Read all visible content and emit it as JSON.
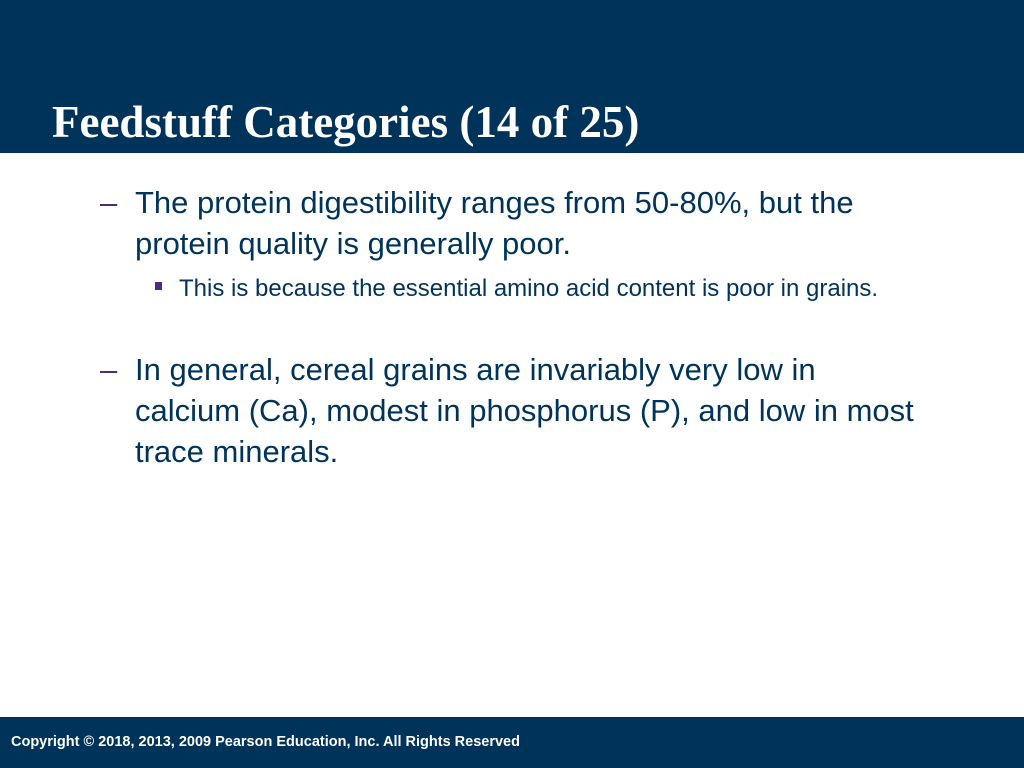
{
  "slide": {
    "title": "Feedstuff Categories (14 of 25)",
    "bullets": [
      {
        "marker": "–",
        "text": "The protein digestibility ranges from 50-80%, but the protein quality is generally poor.",
        "sub": [
          {
            "text": "This is because the essential amino acid content is poor in grains."
          }
        ]
      },
      {
        "marker": "–",
        "text": "In general, cereal grains are invariably very low in calcium (Ca), modest in phosphorus (P), and low in most trace minerals."
      }
    ]
  },
  "footer": {
    "copyright": "Copyright © 2018, 2013, 2009 Pearson Education, Inc. All Rights Reserved"
  },
  "colors": {
    "header_bg": "#003359",
    "body_text": "#003359",
    "bullet_marker": "#4a2b86",
    "title_text": "#ffffff"
  }
}
